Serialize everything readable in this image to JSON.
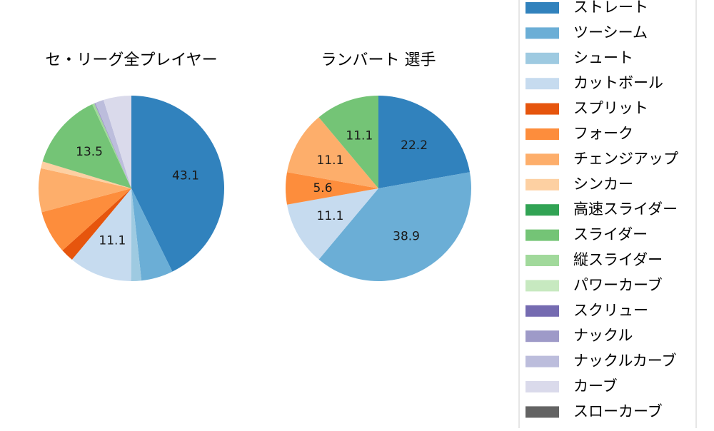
{
  "chart_data": [
    {
      "type": "pie",
      "title": "セ・リーグ全プレイヤー",
      "categories": [
        "ストレート",
        "ツーシーム",
        "シュート",
        "カットボール",
        "スプリット",
        "フォーク",
        "チェンジアップ",
        "シンカー",
        "高速スライダー",
        "スライダー",
        "縦スライダー",
        "パワーカーブ",
        "スクリュー",
        "ナックル",
        "ナックルカーブ",
        "カーブ",
        "スローカーブ"
      ],
      "values": [
        43.1,
        5.6,
        1.8,
        11.1,
        2.3,
        7.6,
        7.7,
        1.2,
        0.0,
        13.5,
        0.4,
        0.0,
        0.0,
        0.2,
        1.5,
        4.9,
        0.0
      ],
      "labels": [
        "43.1",
        "",
        "",
        "11.1",
        "",
        "",
        "",
        "",
        "",
        "13.5",
        "",
        "",
        "",
        "",
        "",
        "",
        ""
      ]
    },
    {
      "type": "pie",
      "title": "ランバート  選手",
      "categories": [
        "ストレート",
        "ツーシーム",
        "シュート",
        "カットボール",
        "スプリット",
        "フォーク",
        "チェンジアップ",
        "シンカー",
        "高速スライダー",
        "スライダー",
        "縦スライダー",
        "パワーカーブ",
        "スクリュー",
        "ナックル",
        "ナックルカーブ",
        "カーブ",
        "スローカーブ"
      ],
      "values": [
        22.2,
        38.9,
        0,
        11.1,
        0,
        5.6,
        11.1,
        0,
        0,
        11.1,
        0,
        0,
        0,
        0,
        0,
        0,
        0
      ],
      "labels": [
        "22.2",
        "38.9",
        "",
        "11.1",
        "",
        "5.6",
        "11.1",
        "",
        "",
        "11.1",
        "",
        "",
        "",
        "",
        "",
        "",
        ""
      ]
    }
  ],
  "legend": {
    "placement": "right",
    "items": [
      {
        "label": "ストレート",
        "color": "#3182bd"
      },
      {
        "label": "ツーシーム",
        "color": "#6baed6"
      },
      {
        "label": "シュート",
        "color": "#9ecae1"
      },
      {
        "label": "カットボール",
        "color": "#c6dbef"
      },
      {
        "label": "スプリット",
        "color": "#e6550d"
      },
      {
        "label": "フォーク",
        "color": "#fd8d3c"
      },
      {
        "label": "チェンジアップ",
        "color": "#fdae6b"
      },
      {
        "label": "シンカー",
        "color": "#fdd0a2"
      },
      {
        "label": "高速スライダー",
        "color": "#31a354"
      },
      {
        "label": "スライダー",
        "color": "#74c476"
      },
      {
        "label": "縦スライダー",
        "color": "#a1d99b"
      },
      {
        "label": "パワーカーブ",
        "color": "#c7e9c0"
      },
      {
        "label": "スクリュー",
        "color": "#756bb1"
      },
      {
        "label": "ナックル",
        "color": "#9e9ac8"
      },
      {
        "label": "ナックルカーブ",
        "color": "#bcbddc"
      },
      {
        "label": "カーブ",
        "color": "#dadaeb"
      },
      {
        "label": "スローカーブ",
        "color": "#636363"
      }
    ]
  }
}
